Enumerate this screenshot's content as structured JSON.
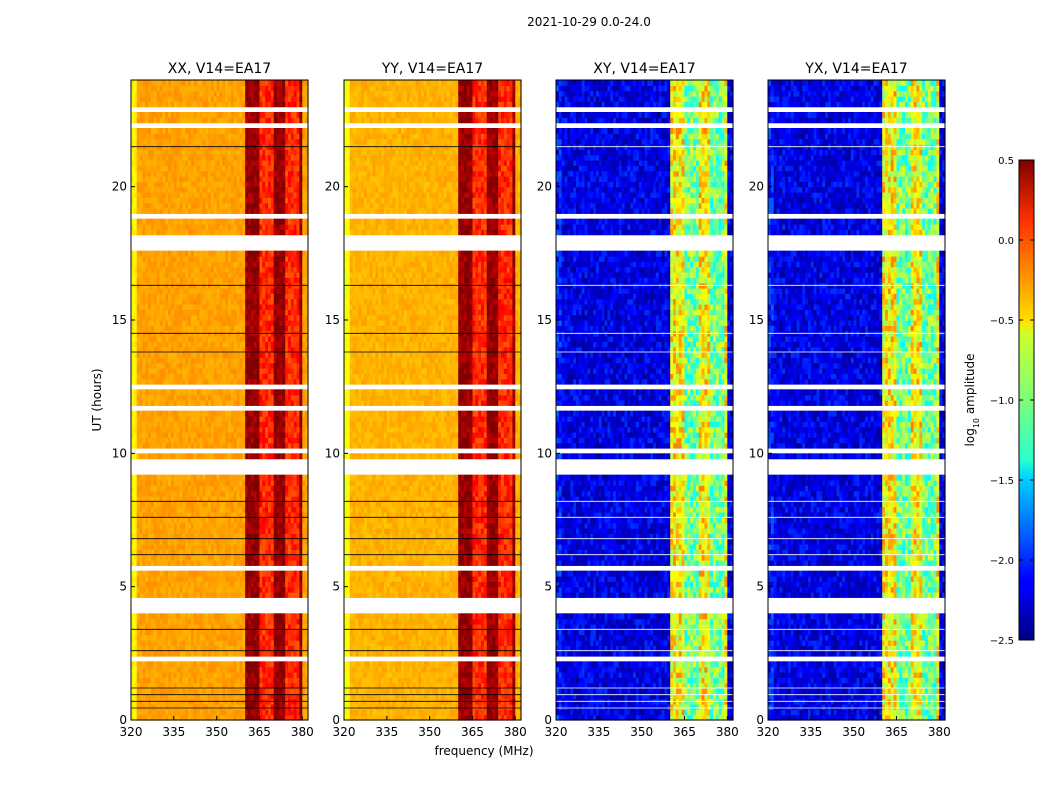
{
  "chart_data": {
    "type": "heatmap",
    "title": "2021-10-29 0.0-24.0",
    "xlabel": "frequency (MHz)",
    "ylabel": "UT (hours)",
    "xlim": [
      320,
      382
    ],
    "ylim": [
      0,
      24
    ],
    "xticks": [
      320,
      335,
      350,
      365,
      380
    ],
    "yticks": [
      0,
      5,
      10,
      15,
      20
    ],
    "colormap": "jet",
    "panels": [
      {
        "name": "XX",
        "title": "XX, V14=EA17",
        "base_log_amp": -0.35,
        "band_log_amp": 0.35
      },
      {
        "name": "YY",
        "title": "YY, V14=EA17",
        "base_log_amp": -0.4,
        "band_log_amp": 0.35
      },
      {
        "name": "XY",
        "title": "XY, V14=EA17",
        "base_log_amp": -2.2,
        "band_log_amp": -0.7
      },
      {
        "name": "YX",
        "title": "YX, V14=EA17",
        "base_log_amp": -2.2,
        "band_log_amp": -0.7
      }
    ],
    "flagged_ut_ranges": [
      [
        2.2,
        2.35
      ],
      [
        4.0,
        4.6
      ],
      [
        5.55,
        5.7
      ],
      [
        9.3,
        9.75
      ],
      [
        10.1,
        10.25
      ],
      [
        11.55,
        11.7
      ],
      [
        12.45,
        12.55
      ],
      [
        17.55,
        18.1
      ],
      [
        18.3,
        18.45
      ],
      [
        18.8,
        19.05
      ],
      [
        22.25,
        22.45
      ],
      [
        22.9,
        23.05
      ]
    ],
    "bright_band_mhz": [
      360,
      380
    ],
    "colorbar": {
      "label": "log10 amplitude",
      "label_main": "log",
      "label_sub": "10",
      "label_rest": " amplitude",
      "range": [
        -2.5,
        0.5
      ],
      "ticks": [
        "0.5",
        "0.0",
        "−0.5",
        "−1.0",
        "−1.5",
        "−2.0",
        "−2.5"
      ]
    }
  }
}
